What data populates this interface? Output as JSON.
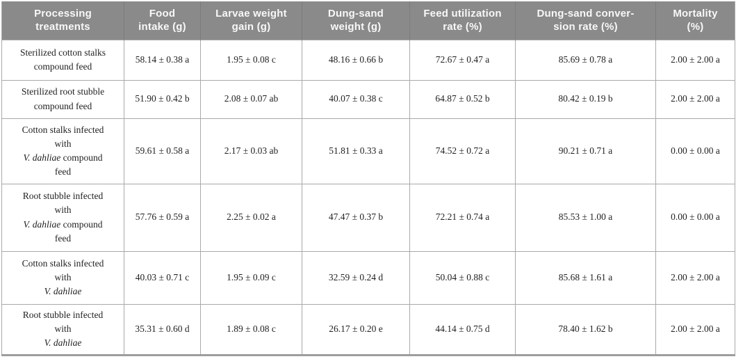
{
  "colors": {
    "header_bg": "#8a8a8a",
    "header_text": "#f8f8f8",
    "header_divider": "#7c7c7c",
    "grid_line": "#a9a9a9",
    "bottom_rule": "#9d9d9d",
    "body_text": "#1f1f1f"
  },
  "table": {
    "columns": [
      {
        "id": "processing-treatments",
        "label": "Processing treatments",
        "lines": [
          "Processing",
          "treatments"
        ]
      },
      {
        "id": "food-intake",
        "label": "Food intake (g)",
        "lines": [
          "Food",
          "intake (g)"
        ]
      },
      {
        "id": "larvae-weight-gain",
        "label": "Larvae weight gain (g)",
        "lines": [
          "Larvae weight",
          "gain (g)"
        ]
      },
      {
        "id": "dung-sand-weight",
        "label": "Dung-sand weight (g)",
        "lines": [
          "Dung-sand",
          "weight (g)"
        ]
      },
      {
        "id": "feed-utilization-rate",
        "label": "Feed utilization rate (%)",
        "lines": [
          "Feed utilization",
          "rate (%)"
        ]
      },
      {
        "id": "dung-sand-conversion-rate",
        "label": "Dung-sand conversion rate (%)",
        "lines": [
          "Dung-sand conver-",
          "sion rate (%)"
        ]
      },
      {
        "id": "mortality",
        "label": "Mortality (%)",
        "lines": [
          "Mortality",
          "(%)"
        ]
      }
    ],
    "rows": [
      {
        "treatment": "Sterilized cotton stalks compound feed",
        "treatment_lines": [
          [
            {
              "t": "Sterilized cotton stalks"
            }
          ],
          [
            {
              "t": "compound feed"
            }
          ]
        ],
        "values": [
          "58.14 ± 0.38 a",
          "1.95 ± 0.08 c",
          "48.16 ± 0.66 b",
          "72.67 ± 0.47 a",
          "85.69 ± 0.78 a",
          "2.00 ± 2.00 a"
        ]
      },
      {
        "treatment": "Sterilized root stubble compound feed",
        "treatment_lines": [
          [
            {
              "t": "Sterilized root stubble"
            }
          ],
          [
            {
              "t": "compound feed"
            }
          ]
        ],
        "values": [
          "51.90 ± 0.42 b",
          "2.08 ± 0.07 ab",
          "40.07 ± 0.38 c",
          "64.87 ± 0.52 b",
          "80.42 ± 0.19 b",
          "2.00 ± 2.00 a"
        ]
      },
      {
        "treatment": "Cotton stalks infected with V. dahliae compound feed",
        "treatment_lines": [
          [
            {
              "t": "Cotton stalks infected"
            }
          ],
          [
            {
              "t": "with"
            }
          ],
          [
            {
              "t": "V. dahliae",
              "i": true
            },
            {
              "t": " compound"
            }
          ],
          [
            {
              "t": "feed"
            }
          ]
        ],
        "values": [
          "59.61 ± 0.58 a",
          "2.17 ± 0.03 ab",
          "51.81 ± 0.33 a",
          "74.52 ± 0.72 a",
          "90.21 ± 0.71 a",
          "0.00 ± 0.00 a"
        ]
      },
      {
        "treatment": "Root stubble infected with V. dahliae compound feed",
        "treatment_lines": [
          [
            {
              "t": "Root stubble infected"
            }
          ],
          [
            {
              "t": "with"
            }
          ],
          [
            {
              "t": "V. dahliae",
              "i": true
            },
            {
              "t": " compound"
            }
          ],
          [
            {
              "t": "feed"
            }
          ]
        ],
        "values": [
          "57.76 ± 0.59 a",
          "2.25 ± 0.02 a",
          "47.47 ± 0.37 b",
          "72.21 ± 0.74 a",
          "85.53 ± 1.00 a",
          "0.00 ± 0.00 a"
        ]
      },
      {
        "treatment": "Cotton stalks infected with V. dahliae",
        "treatment_lines": [
          [
            {
              "t": "Cotton stalks infected"
            }
          ],
          [
            {
              "t": "with"
            }
          ],
          [
            {
              "t": "V. dahliae",
              "i": true
            }
          ]
        ],
        "values": [
          "40.03 ± 0.71 c",
          "1.95 ± 0.09 c",
          "32.59 ± 0.24 d",
          "50.04 ± 0.88 c",
          "85.68 ± 1.61 a",
          "2.00 ± 2.00 a"
        ]
      },
      {
        "treatment": "Root stubble infected with V. dahliae",
        "treatment_lines": [
          [
            {
              "t": "Root stubble infected"
            }
          ],
          [
            {
              "t": "with"
            }
          ],
          [
            {
              "t": "V. dahliae",
              "i": true
            }
          ]
        ],
        "values": [
          "35.31 ± 0.60 d",
          "1.89 ± 0.08 c",
          "26.17 ± 0.20 e",
          "44.14 ± 0.75 d",
          "78.40 ± 1.62 b",
          "2.00 ± 2.00 a"
        ]
      }
    ]
  }
}
